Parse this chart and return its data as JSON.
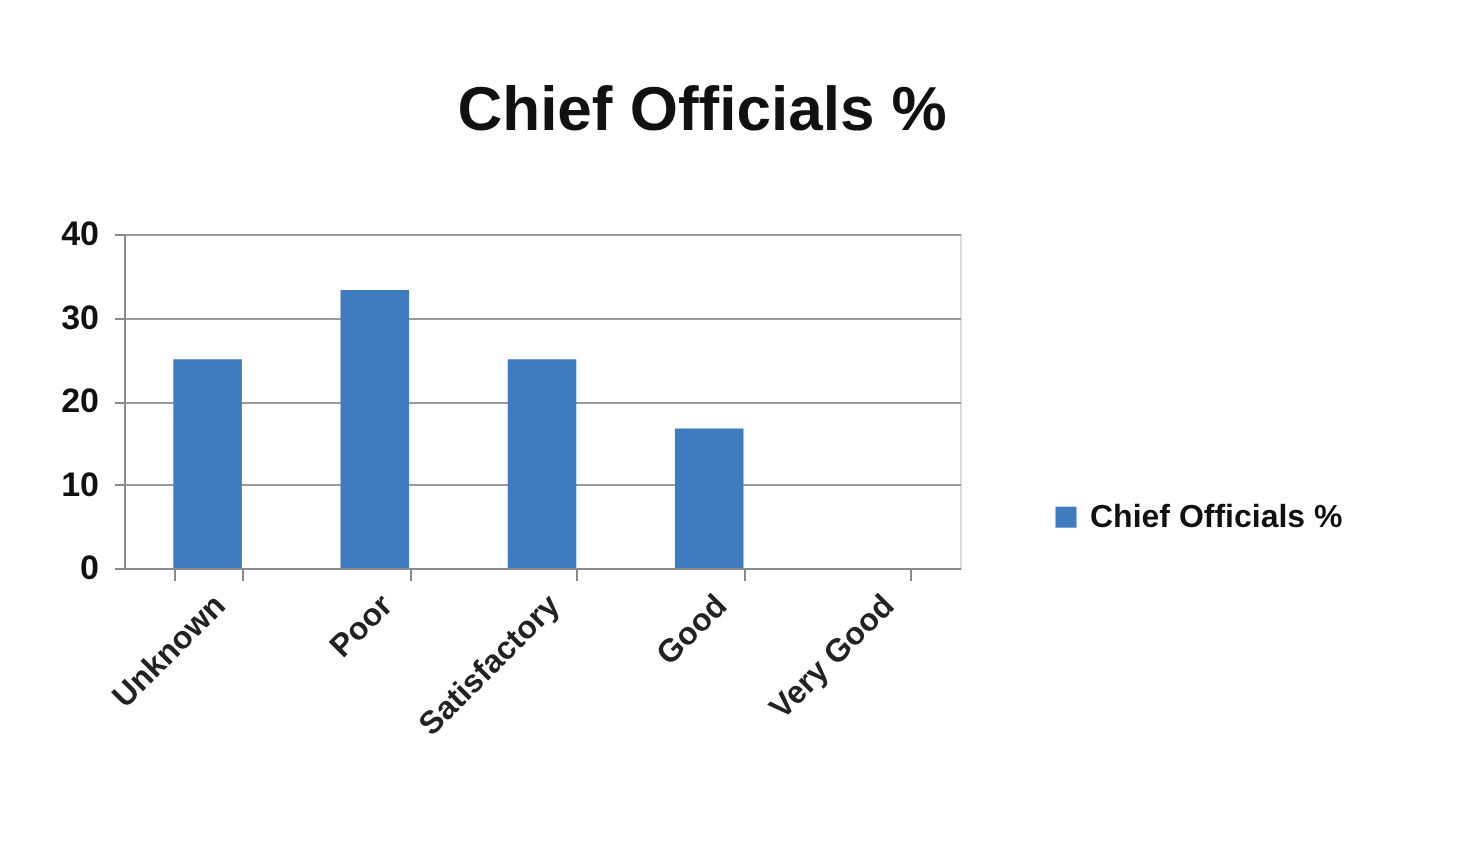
{
  "chart_data": {
    "type": "bar",
    "title": "Chief Officials %",
    "categories": [
      "Unknown",
      "Poor",
      "Satisfactory",
      "Good",
      "Very Good"
    ],
    "series": [
      {
        "name": "Chief Officials %",
        "color": "#3f7cbf",
        "values": [
          25,
          33.3,
          25,
          16.7,
          0
        ]
      }
    ],
    "ylim": [
      0,
      40
    ],
    "yticks": [
      0,
      10,
      20,
      30,
      40
    ],
    "grid": "y",
    "legend": "right"
  }
}
